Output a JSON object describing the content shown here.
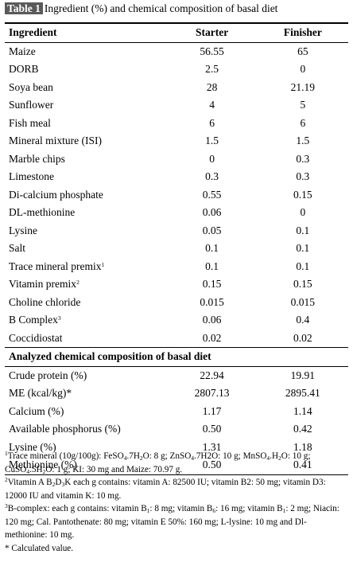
{
  "caption": {
    "tag": "Table 1",
    "title": "Ingredient (%) and chemical composition of basal diet"
  },
  "headers": {
    "ingredient": "Ingredient",
    "starter": "Starter",
    "finisher": "Finisher"
  },
  "ingredients": [
    {
      "name": "Maize",
      "sup": "",
      "starter": "56.55",
      "finisher": "65"
    },
    {
      "name": "DORB",
      "sup": "",
      "starter": "2.5",
      "finisher": "0"
    },
    {
      "name": "Soya bean",
      "sup": "",
      "starter": "28",
      "finisher": "21.19"
    },
    {
      "name": "Sunflower",
      "sup": "",
      "starter": "4",
      "finisher": "5"
    },
    {
      "name": "Fish meal",
      "sup": "",
      "starter": "6",
      "finisher": "6"
    },
    {
      "name": "Mineral mixture (ISI)",
      "sup": "",
      "starter": "1.5",
      "finisher": "1.5"
    },
    {
      "name": "Marble chips",
      "sup": "",
      "starter": "0",
      "finisher": "0.3"
    },
    {
      "name": "Limestone",
      "sup": "",
      "starter": "0.3",
      "finisher": "0.3"
    },
    {
      "name": "Di-calcium phosphate",
      "sup": "",
      "starter": "0.55",
      "finisher": "0.15"
    },
    {
      "name": "DL-methionine",
      "sup": "",
      "starter": "0.06",
      "finisher": "0"
    },
    {
      "name": "Lysine",
      "sup": "",
      "starter": "0.05",
      "finisher": "0.1"
    },
    {
      "name": "Salt",
      "sup": "",
      "starter": "0.1",
      "finisher": "0.1"
    },
    {
      "name": "Trace mineral premix",
      "sup": "1",
      "starter": "0.1",
      "finisher": "0.1"
    },
    {
      "name": "Vitamin premix",
      "sup": "2",
      "starter": "0.15",
      "finisher": "0.15"
    },
    {
      "name": "Choline chloride",
      "sup": "",
      "starter": "0.015",
      "finisher": "0.015"
    },
    {
      "name": "B Complex",
      "sup": "3",
      "starter": "0.06",
      "finisher": "0.4"
    },
    {
      "name": "Coccidiostat",
      "sup": "",
      "starter": "0.02",
      "finisher": "0.02"
    }
  ],
  "section_title": "Analyzed chemical composition of basal diet",
  "composition": [
    {
      "name": "Crude protein (%)",
      "starter": "22.94",
      "finisher": "19.91"
    },
    {
      "name": "ME (kcal/kg)*",
      "starter": "2807.13",
      "finisher": "2895.41"
    },
    {
      "name": "Calcium (%)",
      "starter": "1.17",
      "finisher": "1.14"
    },
    {
      "name": "Available phosphorus (%)",
      "starter": "0.50",
      "finisher": "0.42"
    },
    {
      "name": "Lysine (%)",
      "starter": "1.31",
      "finisher": "1.18"
    },
    {
      "name": "Methionine (%)",
      "starter": "0.50",
      "finisher": "0.41"
    }
  ],
  "footnotes": {
    "n1": {
      "mark": "1",
      "t1": "Trace mineral (10g/100g): FeSO",
      "s1": "4",
      "t2": ".7H",
      "s2": "2",
      "t3": "O: 8 g; ZnSO",
      "s3": "4",
      "t4": ".7H2O: 10 g; MnSO",
      "s4": "4",
      "t5": ".H",
      "s5": "2",
      "t6": "O: 10 g; CuSO",
      "s6": "4",
      "t7": ".5H",
      "s7": "2",
      "t8": "O: 1 g; KI: 30 mg and Maize: 70.97 g."
    },
    "n2": {
      "mark": "2",
      "t1": "Vitamin A B",
      "s1": "2",
      "t2": "D",
      "s2": "3",
      "t3": "K each g contains: vitamin A: 82500 IU; vitamin B2: 50 mg; vitamin D3: 12000 IU and vitamin K: 10 mg."
    },
    "n3": {
      "mark": "3",
      "t1": "B-complex: each g contains: vitamin B",
      "s1": "1",
      "t2": ": 8 mg; vitamin B",
      "s2": "6",
      "t3": ": 16 mg; vitamin B",
      "s3": "1",
      "t4": ": 2 mg; Niacin: 120 mg; Cal. Pantothenate: 80 mg; vitamin E 50%: 160 mg; L-lysine: 10 mg and Dl-methionine: 10 mg."
    },
    "n4": "* Calculated value."
  }
}
